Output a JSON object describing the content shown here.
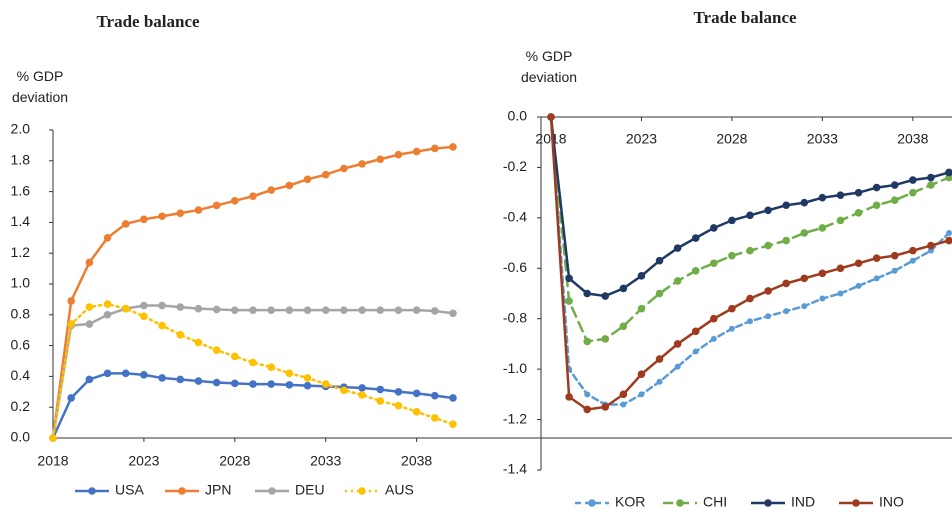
{
  "chart_data": [
    {
      "type": "line",
      "title": "Trade balance",
      "y_label": "% GDP deviation",
      "x": [
        2018,
        2019,
        2020,
        2021,
        2022,
        2023,
        2024,
        2025,
        2026,
        2027,
        2028,
        2029,
        2030,
        2031,
        2032,
        2033,
        2034,
        2035,
        2036,
        2037,
        2038,
        2039,
        2040
      ],
      "xlim": [
        2018,
        2040
      ],
      "xticks": [
        2018,
        2023,
        2028,
        2033,
        2038
      ],
      "ylim": [
        0,
        2
      ],
      "yticks": [
        {
          "value": 0,
          "label": "0.0"
        },
        {
          "value": 0.2,
          "label": "0.2"
        },
        {
          "value": 0.4,
          "label": "0.4"
        },
        {
          "value": 0.6,
          "label": "0.6"
        },
        {
          "value": 0.8,
          "label": "0.8"
        },
        {
          "value": 1,
          "label": "1.0"
        },
        {
          "value": 1.2,
          "label": "1.2"
        },
        {
          "value": 1.4,
          "label": "1.4"
        },
        {
          "value": 1.6,
          "label": "1.6"
        },
        {
          "value": 1.8,
          "label": "1.8"
        },
        {
          "value": 2,
          "label": "2.0"
        }
      ],
      "legend": "bottom",
      "series": [
        {
          "name": "USA",
          "color": "#4472c4",
          "line_style": "solid",
          "values": [
            0,
            0.26,
            0.38,
            0.42,
            0.42,
            0.41,
            0.39,
            0.38,
            0.37,
            0.36,
            0.355,
            0.35,
            0.35,
            0.345,
            0.34,
            0.335,
            0.33,
            0.325,
            0.315,
            0.3,
            0.29,
            0.275,
            0.26
          ]
        },
        {
          "name": "JPN",
          "color": "#ed7d31",
          "line_style": "solid",
          "values": [
            0,
            0.89,
            1.14,
            1.3,
            1.39,
            1.42,
            1.44,
            1.46,
            1.48,
            1.51,
            1.54,
            1.57,
            1.61,
            1.64,
            1.68,
            1.71,
            1.75,
            1.78,
            1.81,
            1.84,
            1.86,
            1.88,
            1.89
          ]
        },
        {
          "name": "DEU",
          "color": "#a5a5a5",
          "line_style": "solid",
          "values": [
            0,
            0.73,
            0.74,
            0.8,
            0.84,
            0.86,
            0.86,
            0.85,
            0.84,
            0.835,
            0.83,
            0.83,
            0.83,
            0.83,
            0.83,
            0.83,
            0.83,
            0.83,
            0.83,
            0.83,
            0.83,
            0.825,
            0.81
          ]
        },
        {
          "name": "AUS",
          "color": "#ffc000",
          "line_style": "dotted",
          "values": [
            0,
            0.74,
            0.85,
            0.87,
            0.84,
            0.79,
            0.73,
            0.67,
            0.62,
            0.57,
            0.53,
            0.49,
            0.46,
            0.42,
            0.39,
            0.35,
            0.31,
            0.28,
            0.24,
            0.21,
            0.17,
            0.13,
            0.09
          ]
        }
      ]
    },
    {
      "type": "line",
      "title": "Trade balance",
      "y_label": "% GDP deviation",
      "x": [
        2018,
        2019,
        2020,
        2021,
        2022,
        2023,
        2024,
        2025,
        2026,
        2027,
        2028,
        2029,
        2030,
        2031,
        2032,
        2033,
        2034,
        2035,
        2036,
        2037,
        2038,
        2039,
        2040
      ],
      "xlim": [
        2018,
        2040
      ],
      "xticks": [
        2018,
        2023,
        2028,
        2033,
        2038
      ],
      "ylim": [
        -1.4,
        0
      ],
      "yticks": [
        {
          "value": 0,
          "label": "0.0"
        },
        -0.2,
        -0.4,
        -0.6,
        -0.8,
        {
          "value": -1,
          "label": "-1.0"
        },
        -1.2,
        -1.4
      ],
      "legend": "bottom",
      "series": [
        {
          "name": "KOR",
          "color": "#5b9bd5",
          "line_style": "dashed",
          "values": [
            0,
            -1.0,
            -1.1,
            -1.14,
            -1.14,
            -1.1,
            -1.05,
            -0.99,
            -0.93,
            -0.88,
            -0.84,
            -0.81,
            -0.79,
            -0.77,
            -0.75,
            -0.72,
            -0.7,
            -0.67,
            -0.64,
            -0.61,
            -0.57,
            -0.53,
            -0.46
          ]
        },
        {
          "name": "CHI",
          "color": "#70ad47",
          "line_style": "long-dashed",
          "values": [
            0,
            -0.73,
            -0.89,
            -0.88,
            -0.83,
            -0.76,
            -0.7,
            -0.65,
            -0.61,
            -0.58,
            -0.55,
            -0.53,
            -0.51,
            -0.49,
            -0.46,
            -0.44,
            -0.41,
            -0.38,
            -0.35,
            -0.33,
            -0.3,
            -0.27,
            -0.24
          ]
        },
        {
          "name": "IND",
          "color": "#203864",
          "line_style": "solid",
          "values": [
            0,
            -0.64,
            -0.7,
            -0.71,
            -0.68,
            -0.63,
            -0.57,
            -0.52,
            -0.48,
            -0.44,
            -0.41,
            -0.39,
            -0.37,
            -0.35,
            -0.34,
            -0.32,
            -0.31,
            -0.3,
            -0.28,
            -0.27,
            -0.25,
            -0.24,
            -0.22
          ]
        },
        {
          "name": "INO",
          "color": "#9e3b1e",
          "line_style": "solid",
          "values": [
            0,
            -1.11,
            -1.16,
            -1.15,
            -1.1,
            -1.02,
            -0.96,
            -0.9,
            -0.85,
            -0.8,
            -0.76,
            -0.72,
            -0.69,
            -0.66,
            -0.64,
            -0.62,
            -0.6,
            -0.58,
            -0.56,
            -0.55,
            -0.53,
            -0.51,
            -0.49
          ]
        }
      ]
    }
  ]
}
